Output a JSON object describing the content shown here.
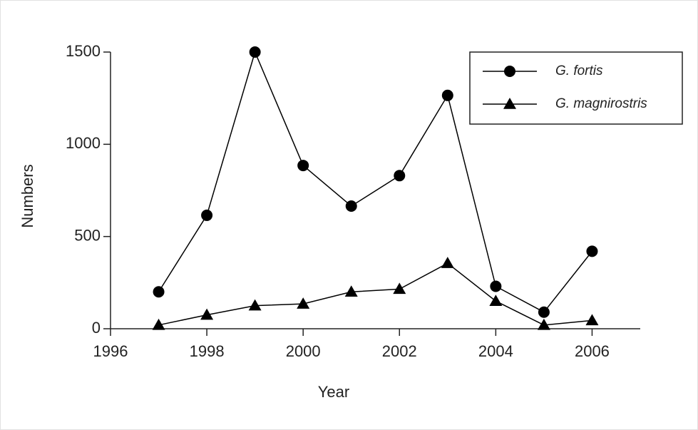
{
  "chart_data": {
    "type": "line",
    "x_label": "Year",
    "y_label": "Numbers",
    "x": [
      1997,
      1998,
      1999,
      2000,
      2001,
      2002,
      2003,
      2004,
      2005,
      2006
    ],
    "series": [
      {
        "name": "G. fortis",
        "color": "#000000",
        "marker": "circle",
        "values": [
          200,
          615,
          1500,
          885,
          665,
          830,
          1265,
          230,
          90,
          420
        ]
      },
      {
        "name": "G. magnirostris",
        "color": "#000000",
        "marker": "triangle",
        "values": [
          20,
          75,
          125,
          135,
          200,
          215,
          355,
          150,
          20,
          45
        ]
      }
    ],
    "xlim": [
      1996,
      2007
    ],
    "xticks": [
      1996,
      1998,
      2000,
      2002,
      2004,
      2006
    ],
    "ylim": [
      0,
      1500
    ],
    "yticks": [
      0,
      500,
      1000,
      1500
    ],
    "legend": "upper right",
    "grid": false
  }
}
